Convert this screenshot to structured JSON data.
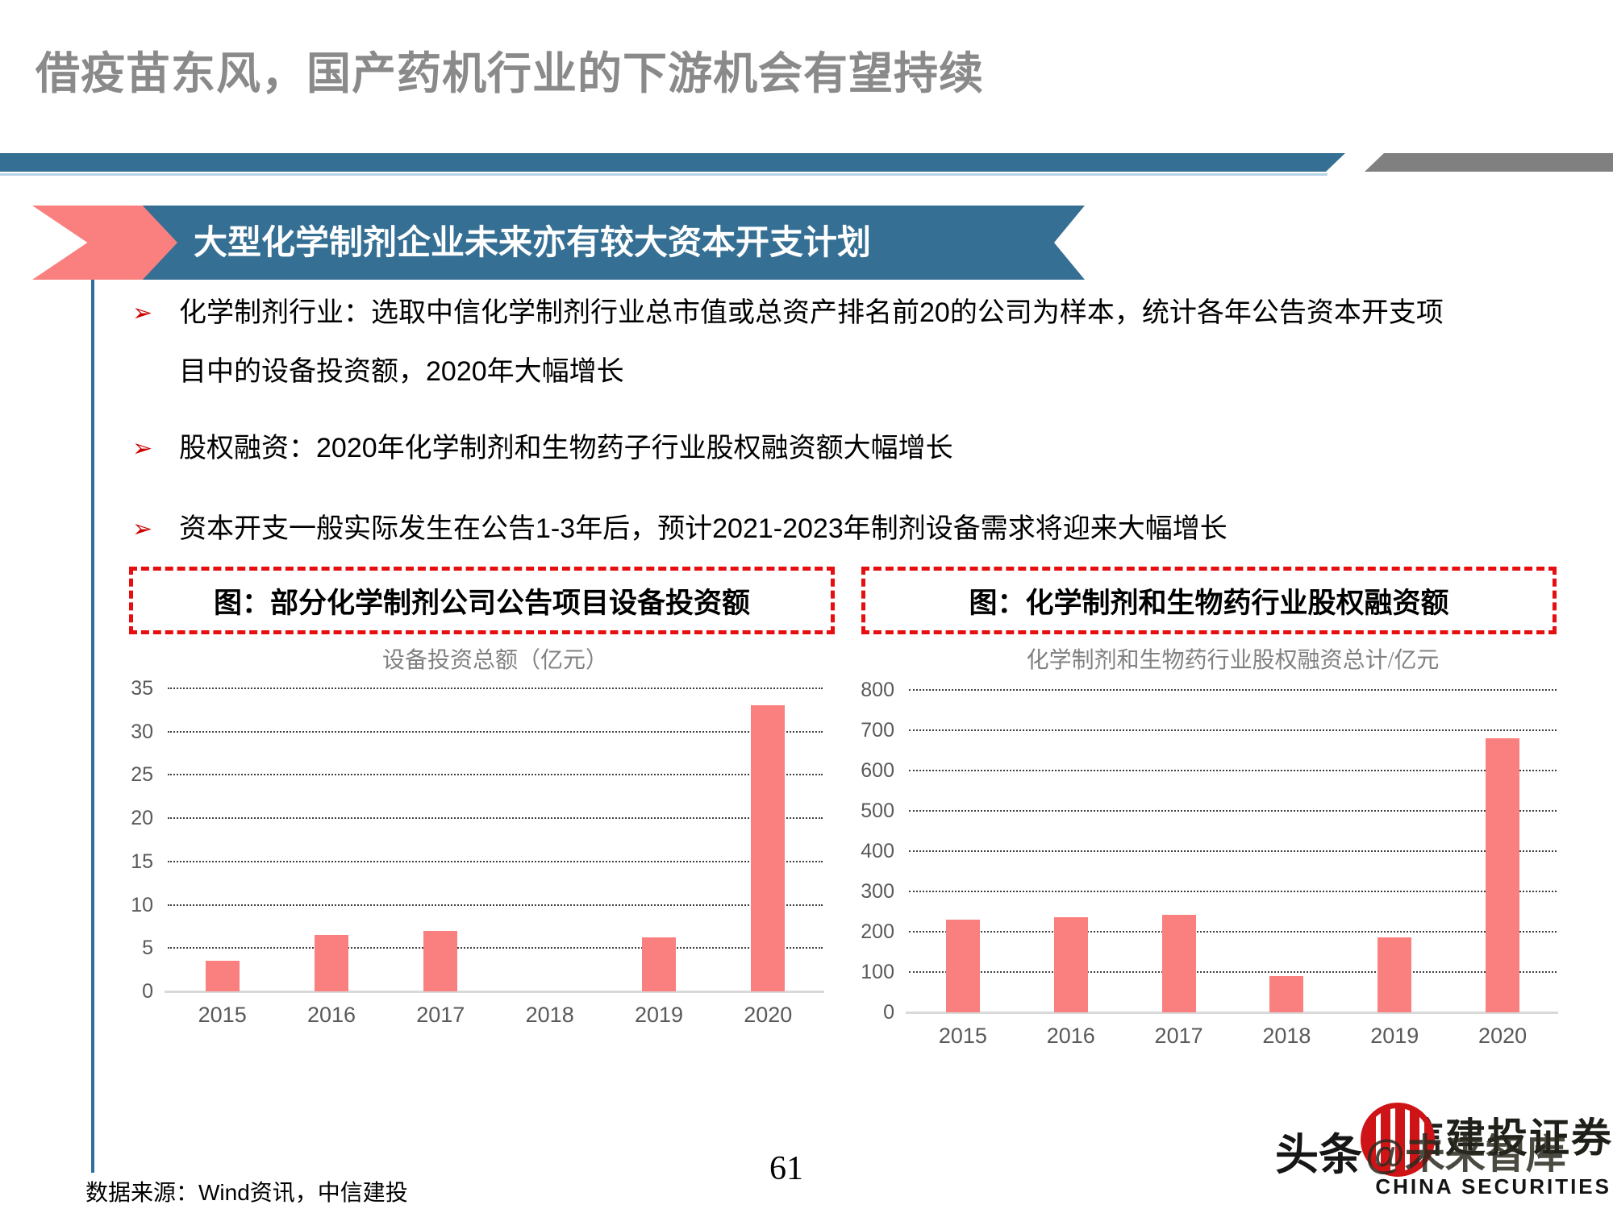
{
  "title": "借疫苗东风，国产药机行业的下游机会有望持续",
  "banner": {
    "label": "大型化学制剂企业未来亦有较大资本开支计划"
  },
  "bullets": [
    "化学制剂行业：选取中信化学制剂行业总市值或总资产排名前20的公司为样本，统计各年公告资本开支项目中的设备投资额，2020年大幅增长",
    "股权融资：2020年化学制剂和生物药子行业股权融资额大幅增长",
    "资本开支一般实际发生在公告1-3年后，预计2021-2023年制剂设备需求将迎来大幅增长"
  ],
  "chart_data": [
    {
      "type": "bar",
      "title": "图：部分化学制剂公司公告项目设备投资额",
      "axis_title": "设备投资总额（亿元）",
      "categories": [
        "2015",
        "2016",
        "2017",
        "2018",
        "2019",
        "2020"
      ],
      "values": [
        3.5,
        6.5,
        7,
        0,
        6.2,
        33
      ],
      "ylim": [
        0,
        35
      ],
      "ytick_step": 5,
      "grid": "dotted horizontal",
      "legend": "none"
    },
    {
      "type": "bar",
      "title": "图：化学制剂和生物药行业股权融资额",
      "axis_title": "化学制剂和生物药行业股权融资总计/亿元",
      "categories": [
        "2015",
        "2016",
        "2017",
        "2018",
        "2019",
        "2020"
      ],
      "values": [
        230,
        236,
        241,
        90,
        185,
        680
      ],
      "ylim": [
        0,
        800
      ],
      "ytick_step": 100,
      "grid": "dotted horizontal",
      "legend": "none"
    }
  ],
  "footer": {
    "source": "数据来源：Wind资讯，中信建投",
    "page": "61"
  },
  "watermark": {
    "toutiao": "头条",
    "handle": "@未来智库",
    "brand_cn": "中信建投证券",
    "brand_en": "CHINA SECURITIES"
  },
  "colors": {
    "accent_blue": "#366f94",
    "bar_pink": "#f9807e",
    "dashed_red": "#e60e0e",
    "band_gray": "#808080",
    "title_gray": "#8a8a8a"
  }
}
